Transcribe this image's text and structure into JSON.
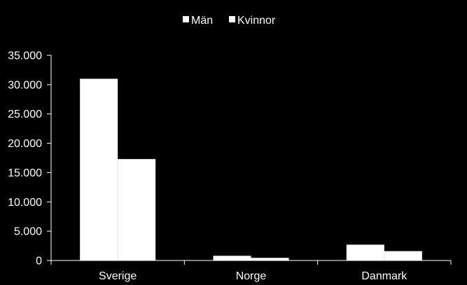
{
  "chart_data": {
    "type": "bar",
    "categories": [
      "Sverige",
      "Norge",
      "Danmark"
    ],
    "series": [
      {
        "name": "Män",
        "values": [
          31000,
          800,
          2700
        ]
      },
      {
        "name": "Kvinnor",
        "values": [
          17300,
          450,
          1600
        ]
      }
    ],
    "ylim": [
      0,
      35000
    ],
    "yticks": [
      {
        "value": 0,
        "label": "0"
      },
      {
        "value": 5000,
        "label": "5.000"
      },
      {
        "value": 10000,
        "label": "10.000"
      },
      {
        "value": 15000,
        "label": "15.000"
      },
      {
        "value": 20000,
        "label": "20.000"
      },
      {
        "value": 25000,
        "label": "25.000"
      },
      {
        "value": 30000,
        "label": "30.000"
      },
      {
        "value": 35000,
        "label": "35.000"
      }
    ],
    "legend_position": "top-center",
    "grid": false,
    "colors": {
      "background": "#000000",
      "bars": "#ffffff",
      "axis": "#ffffff",
      "text": "#ffffff"
    }
  }
}
